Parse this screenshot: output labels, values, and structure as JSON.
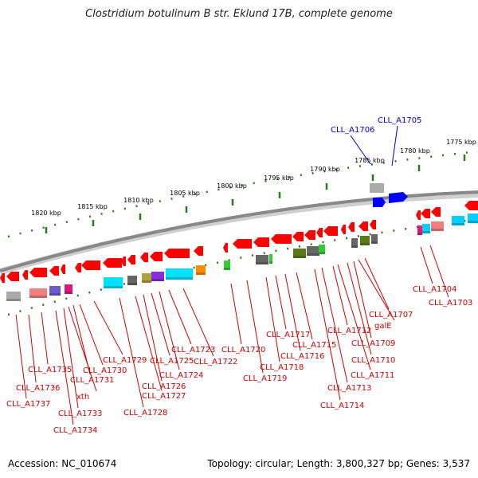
{
  "title": "Clostridium botulinum B str. Eklund 17B, complete genome",
  "footer": {
    "accession": "Accession: NC_010674",
    "summary": "Topology: circular; Length: 3,800,327 bp; Genes: 3,537"
  },
  "ticks": [
    "1820 kbp",
    "1815 kbp",
    "1810 kbp",
    "1805 kbp",
    "1800 kbp",
    "1795 kbp",
    "1790 kbp",
    "1785 kbp",
    "1780 kbp",
    "1775 kbp"
  ],
  "colors": {
    "forward_gene": "#ff0000",
    "highlight_gene": "#0000ff",
    "label_line": "#cc0000",
    "highlight_label": "#0000cc",
    "backbone": "#888888",
    "tick_dots": "#2a7a1e"
  },
  "labels": [
    {
      "text": "CLL_A1737",
      "color": "red"
    },
    {
      "text": "CLL_A1736",
      "color": "red"
    },
    {
      "text": "CLL_A1735",
      "color": "red"
    },
    {
      "text": "CLL_A1734",
      "color": "red"
    },
    {
      "text": "CLL_A1733",
      "color": "red"
    },
    {
      "text": "xth",
      "color": "red"
    },
    {
      "text": "CLL_A1731",
      "color": "red"
    },
    {
      "text": "CLL_A1730",
      "color": "red"
    },
    {
      "text": "CLL_A1729",
      "color": "red"
    },
    {
      "text": "CLL_A1728",
      "color": "red"
    },
    {
      "text": "CLL_A1727",
      "color": "red"
    },
    {
      "text": "CLL_A1726",
      "color": "red"
    },
    {
      "text": "CLL_A1725",
      "color": "red"
    },
    {
      "text": "CLL_A1724",
      "color": "red"
    },
    {
      "text": "CLL_A1723",
      "color": "red"
    },
    {
      "text": "CLL_A1722",
      "color": "red"
    },
    {
      "text": "CLL_A1720",
      "color": "red"
    },
    {
      "text": "CLL_A1719",
      "color": "red"
    },
    {
      "text": "CLL_A1718",
      "color": "red"
    },
    {
      "text": "CLL_A1717",
      "color": "red"
    },
    {
      "text": "CLL_A1716",
      "color": "red"
    },
    {
      "text": "CLL_A1715",
      "color": "red"
    },
    {
      "text": "CLL_A1714",
      "color": "red"
    },
    {
      "text": "CLL_A1713",
      "color": "red"
    },
    {
      "text": "CLL_A1712",
      "color": "red"
    },
    {
      "text": "CLL_A1711",
      "color": "red"
    },
    {
      "text": "CLL_A1710",
      "color": "red"
    },
    {
      "text": "CLL_A1709",
      "color": "red"
    },
    {
      "text": "galE",
      "color": "red"
    },
    {
      "text": "CLL_A1707",
      "color": "red"
    },
    {
      "text": "CLL_A1706",
      "color": "blue"
    },
    {
      "text": "CLL_A1705",
      "color": "blue"
    },
    {
      "text": "CLL_A1704",
      "color": "red"
    },
    {
      "text": "CLL_A1703",
      "color": "red"
    }
  ]
}
